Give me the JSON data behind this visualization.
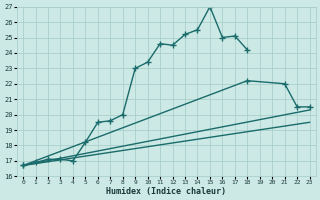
{
  "background_color": "#cce9e5",
  "grid_color": "#aacfcb",
  "line_color": "#1a6b6b",
  "line_width": 1.0,
  "marker": "+",
  "marker_size": 4,
  "marker_ew": 1.0,
  "xlabel": "Humidex (Indice chaleur)",
  "xlim": [
    -0.5,
    23.5
  ],
  "ylim": [
    16,
    27
  ],
  "xticks": [
    0,
    1,
    2,
    3,
    4,
    5,
    6,
    7,
    8,
    9,
    10,
    11,
    12,
    13,
    14,
    15,
    16,
    17,
    18,
    19,
    20,
    21,
    22,
    23
  ],
  "yticks": [
    16,
    17,
    18,
    19,
    20,
    21,
    22,
    23,
    24,
    25,
    26,
    27
  ],
  "series": [
    {
      "x": [
        0,
        1,
        2,
        3,
        4,
        5,
        6,
        7,
        8,
        9,
        10,
        11,
        12,
        13,
        14,
        15,
        16,
        17,
        18
      ],
      "y": [
        16.7,
        16.9,
        17.1,
        17.1,
        17.0,
        18.2,
        19.5,
        19.6,
        20.0,
        23.0,
        23.4,
        24.6,
        24.5,
        25.2,
        25.5,
        27.0,
        25.0,
        25.1,
        24.2
      ],
      "has_marker": true
    },
    {
      "x": [
        0,
        18,
        21,
        22,
        23
      ],
      "y": [
        16.7,
        22.2,
        22.0,
        20.5,
        20.5
      ],
      "has_marker": true
    },
    {
      "x": [
        0,
        23
      ],
      "y": [
        16.7,
        19.5
      ],
      "has_marker": false
    },
    {
      "x": [
        0,
        23
      ],
      "y": [
        16.7,
        20.3
      ],
      "has_marker": false
    }
  ]
}
